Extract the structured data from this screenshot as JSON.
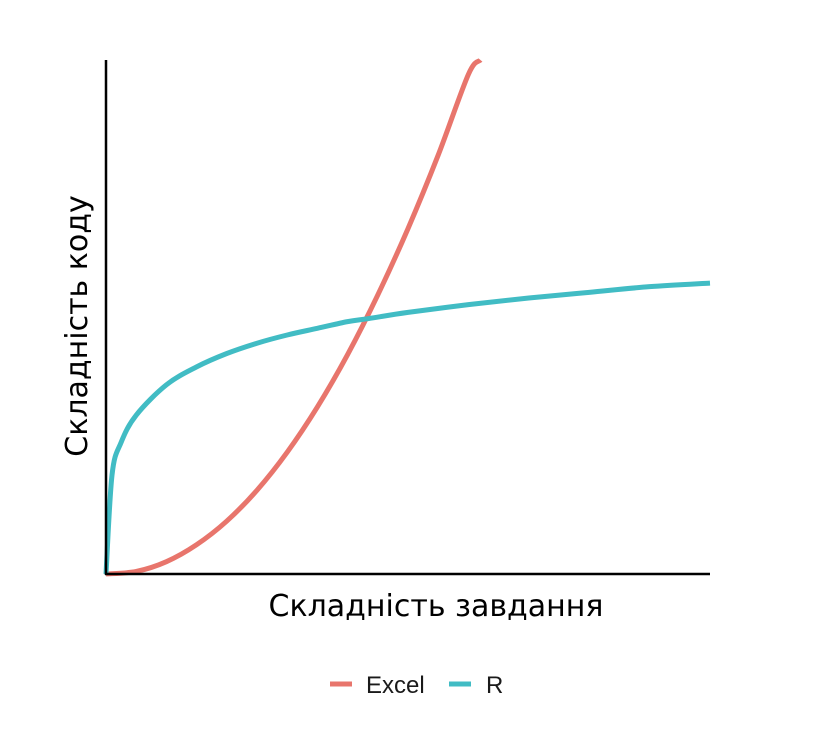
{
  "chart_data": {
    "type": "line",
    "xlabel": "Складність завдання",
    "ylabel": "Складність коду",
    "xlim": [
      0,
      1
    ],
    "ylim": [
      0,
      1
    ],
    "grid": false,
    "ticks": false,
    "legend": {
      "placement": "bottom"
    },
    "series": [
      {
        "name": "Excel",
        "color": "#E8756C",
        "x": [
          0,
          0.05,
          0.1,
          0.15,
          0.2,
          0.25,
          0.3,
          0.35,
          0.4,
          0.45,
          0.5,
          0.55,
          0.6,
          0.62
        ],
        "y": [
          0,
          0.005,
          0.024,
          0.057,
          0.103,
          0.163,
          0.237,
          0.325,
          0.427,
          0.543,
          0.672,
          0.815,
          0.972,
          1.0
        ]
      },
      {
        "name": "R",
        "color": "#41BCC4",
        "x": [
          0,
          0.01,
          0.025,
          0.05,
          0.1,
          0.15,
          0.2,
          0.25,
          0.3,
          0.35,
          0.4,
          0.435,
          0.5,
          0.6,
          0.7,
          0.8,
          0.9,
          1.0
        ],
        "y": [
          0,
          0.193,
          0.256,
          0.309,
          0.368,
          0.403,
          0.429,
          0.449,
          0.465,
          0.478,
          0.491,
          0.497,
          0.509,
          0.524,
          0.537,
          0.548,
          0.559,
          0.566
        ]
      }
    ]
  }
}
